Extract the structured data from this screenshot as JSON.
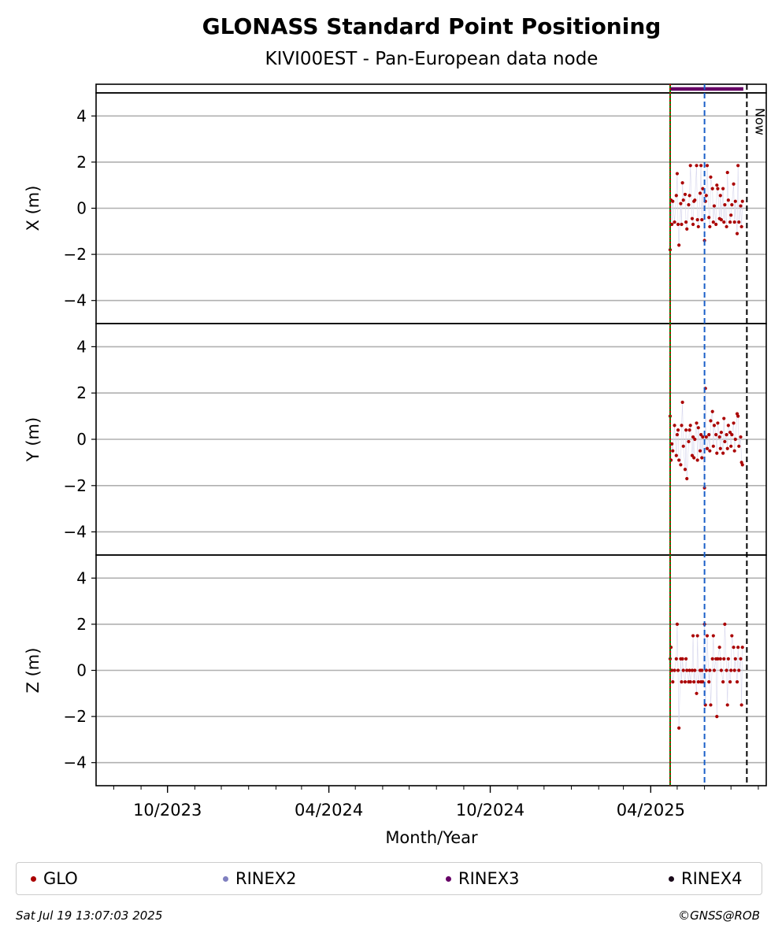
{
  "title": "GLONASS Standard Point Positioning",
  "subtitle": "KIVI00EST - Pan-European data node",
  "chart_data": {
    "type": "scatter",
    "xlabel": "Month/Year",
    "x_tick_labels": [
      "10/2023",
      "04/2024",
      "10/2024",
      "04/2025"
    ],
    "x_tick_dates": [
      "2023-10-01",
      "2024-04-01",
      "2024-10-01",
      "2025-04-01"
    ],
    "xlim": [
      "2023-07-12",
      "2025-08-10"
    ],
    "grid": "horizontal",
    "now_label": "Now",
    "now_date": "2025-07-19",
    "vertical_lines": [
      {
        "date": "2025-04-23",
        "style": "solid",
        "color": "#008000"
      },
      {
        "date": "2025-04-23",
        "style": "dotted",
        "color": "#cc0000"
      },
      {
        "date": "2025-06-01",
        "style": "dashed",
        "color": "#1a5fc8"
      },
      {
        "date": "2025-07-19",
        "style": "dashed",
        "color": "#000000"
      }
    ],
    "rinex_bar": {
      "series": "RINEX3",
      "start": "2025-04-23",
      "end": "2025-07-15",
      "color": "#660066"
    },
    "panels": [
      {
        "ylabel": "X (m)",
        "ylim": [
          -5,
          5
        ],
        "yticks": [
          -4,
          -2,
          0,
          2,
          4
        ],
        "series": [
          {
            "name": "GLO",
            "color": "#aa0000",
            "x": [
              "2025-04-23",
              "2025-04-24",
              "2025-04-25",
              "2025-04-26",
              "2025-04-28",
              "2025-04-30",
              "2025-05-01",
              "2025-05-02",
              "2025-05-03",
              "2025-05-05",
              "2025-05-06",
              "2025-05-07",
              "2025-05-08",
              "2025-05-10",
              "2025-05-11",
              "2025-05-12",
              "2025-05-14",
              "2025-05-15",
              "2025-05-16",
              "2025-05-18",
              "2025-05-19",
              "2025-05-20",
              "2025-05-21",
              "2025-05-23",
              "2025-05-24",
              "2025-05-25",
              "2025-05-27",
              "2025-05-28",
              "2025-05-29",
              "2025-05-30",
              "2025-06-01",
              "2025-06-02",
              "2025-06-03",
              "2025-06-04",
              "2025-06-06",
              "2025-06-07",
              "2025-06-08",
              "2025-06-10",
              "2025-06-11",
              "2025-06-12",
              "2025-06-14",
              "2025-06-15",
              "2025-06-16",
              "2025-06-18",
              "2025-06-19",
              "2025-06-20",
              "2025-06-22",
              "2025-06-23",
              "2025-06-24",
              "2025-06-26",
              "2025-06-27",
              "2025-06-28",
              "2025-06-30",
              "2025-07-01",
              "2025-07-02",
              "2025-07-04",
              "2025-07-05",
              "2025-07-06",
              "2025-07-08",
              "2025-07-09",
              "2025-07-10",
              "2025-07-12",
              "2025-07-13",
              "2025-07-14"
            ],
            "y": [
              -1.8,
              0.35,
              -0.7,
              0.3,
              -0.6,
              0.55,
              1.5,
              -0.7,
              -1.6,
              0.2,
              -0.7,
              1.1,
              0.35,
              0.6,
              -0.6,
              -0.9,
              0.15,
              0.55,
              1.85,
              -0.45,
              -0.7,
              0.3,
              0.35,
              1.85,
              -0.5,
              -0.8,
              0.65,
              1.85,
              -0.5,
              0.85,
              -1.4,
              0.3,
              0.55,
              1.85,
              -0.4,
              -0.8,
              1.35,
              0.85,
              -0.6,
              0.1,
              -0.7,
              1.0,
              0.85,
              -0.45,
              0.55,
              -0.5,
              0.85,
              -0.6,
              0.15,
              -0.8,
              1.55,
              0.35,
              -0.6,
              -0.3,
              0.15,
              1.05,
              -0.6,
              0.3,
              -1.1,
              1.85,
              -0.6,
              0.1,
              -0.8,
              0.3
            ]
          }
        ]
      },
      {
        "ylabel": "Y (m)",
        "ylim": [
          -5,
          5
        ],
        "yticks": [
          -4,
          -2,
          0,
          2,
          4
        ],
        "series": [
          {
            "name": "GLO",
            "color": "#aa0000",
            "x": [
              "2025-04-23",
              "2025-04-24",
              "2025-04-25",
              "2025-04-26",
              "2025-04-28",
              "2025-04-30",
              "2025-05-01",
              "2025-05-02",
              "2025-05-03",
              "2025-05-05",
              "2025-05-06",
              "2025-05-07",
              "2025-05-08",
              "2025-05-10",
              "2025-05-11",
              "2025-05-12",
              "2025-05-14",
              "2025-05-15",
              "2025-05-16",
              "2025-05-18",
              "2025-05-19",
              "2025-05-20",
              "2025-05-21",
              "2025-05-23",
              "2025-05-24",
              "2025-05-25",
              "2025-05-27",
              "2025-05-28",
              "2025-05-29",
              "2025-05-30",
              "2025-06-01",
              "2025-06-02",
              "2025-06-03",
              "2025-06-04",
              "2025-06-06",
              "2025-06-07",
              "2025-06-08",
              "2025-06-10",
              "2025-06-11",
              "2025-06-12",
              "2025-06-14",
              "2025-06-15",
              "2025-06-16",
              "2025-06-18",
              "2025-06-19",
              "2025-06-20",
              "2025-06-22",
              "2025-06-23",
              "2025-06-24",
              "2025-06-26",
              "2025-06-27",
              "2025-06-28",
              "2025-06-30",
              "2025-07-01",
              "2025-07-02",
              "2025-07-04",
              "2025-07-05",
              "2025-07-06",
              "2025-07-08",
              "2025-07-09",
              "2025-07-10",
              "2025-07-12",
              "2025-07-13",
              "2025-07-14"
            ],
            "y": [
              1.0,
              -0.9,
              -0.2,
              -0.5,
              0.6,
              -0.7,
              0.2,
              0.4,
              -0.9,
              -1.1,
              0.6,
              1.6,
              -0.3,
              -1.3,
              0.4,
              -1.7,
              -0.1,
              0.4,
              0.6,
              -0.7,
              0.1,
              -0.8,
              0.0,
              0.7,
              -0.9,
              0.5,
              -0.5,
              0.2,
              -0.8,
              0.1,
              -2.1,
              2.2,
              0.1,
              -0.4,
              0.2,
              -0.5,
              0.8,
              1.2,
              -0.3,
              0.6,
              0.2,
              -0.6,
              0.7,
              0.1,
              -0.4,
              0.3,
              -0.6,
              0.9,
              -0.1,
              0.2,
              -0.4,
              0.6,
              0.3,
              -0.3,
              0.2,
              0.7,
              -0.5,
              0.0,
              1.1,
              1.0,
              -0.3,
              0.1,
              -1.0,
              -1.1
            ]
          }
        ]
      },
      {
        "ylabel": "Z (m)",
        "ylim": [
          -5,
          5
        ],
        "yticks": [
          -4,
          -2,
          0,
          2,
          4
        ],
        "series": [
          {
            "name": "GLO",
            "color": "#aa0000",
            "x": [
              "2025-04-23",
              "2025-04-24",
              "2025-04-25",
              "2025-04-26",
              "2025-04-28",
              "2025-04-30",
              "2025-05-01",
              "2025-05-02",
              "2025-05-03",
              "2025-05-05",
              "2025-05-06",
              "2025-05-07",
              "2025-05-08",
              "2025-05-10",
              "2025-05-11",
              "2025-05-12",
              "2025-05-14",
              "2025-05-15",
              "2025-05-16",
              "2025-05-18",
              "2025-05-19",
              "2025-05-20",
              "2025-05-21",
              "2025-05-23",
              "2025-05-24",
              "2025-05-25",
              "2025-05-27",
              "2025-05-28",
              "2025-05-29",
              "2025-05-30",
              "2025-06-01",
              "2025-06-02",
              "2025-06-03",
              "2025-06-04",
              "2025-06-06",
              "2025-06-07",
              "2025-06-08",
              "2025-06-10",
              "2025-06-11",
              "2025-06-12",
              "2025-06-14",
              "2025-06-15",
              "2025-06-16",
              "2025-06-18",
              "2025-06-19",
              "2025-06-20",
              "2025-06-22",
              "2025-06-23",
              "2025-06-24",
              "2025-06-26",
              "2025-06-27",
              "2025-06-28",
              "2025-06-30",
              "2025-07-01",
              "2025-07-02",
              "2025-07-04",
              "2025-07-05",
              "2025-07-06",
              "2025-07-08",
              "2025-07-09",
              "2025-07-10",
              "2025-07-12",
              "2025-07-13",
              "2025-07-14"
            ],
            "y": [
              0.5,
              1.0,
              0.0,
              -0.5,
              0.0,
              0.5,
              2.0,
              0.0,
              -2.5,
              0.5,
              -0.5,
              0.5,
              0.0,
              -0.5,
              0.5,
              0.0,
              -0.5,
              0.0,
              -0.5,
              0.0,
              1.5,
              -0.5,
              0.0,
              -1.0,
              1.5,
              -0.5,
              0.0,
              -0.5,
              0.0,
              -0.5,
              2.0,
              -1.5,
              0.0,
              1.5,
              -0.5,
              0.0,
              -1.5,
              0.5,
              1.5,
              0.0,
              0.5,
              -2.0,
              0.5,
              1.0,
              0.5,
              0.0,
              -0.5,
              0.5,
              2.0,
              0.0,
              -1.5,
              0.5,
              -0.5,
              0.0,
              1.5,
              1.0,
              0.0,
              0.5,
              -0.5,
              1.0,
              0.0,
              0.5,
              -1.5,
              1.0
            ]
          }
        ]
      }
    ]
  },
  "legend": [
    {
      "label": "GLO",
      "color": "#aa0000"
    },
    {
      "label": "RINEX2",
      "color": "#8080c0"
    },
    {
      "label": "RINEX3",
      "color": "#660066"
    },
    {
      "label": "RINEX4",
      "color": "#1a0a1a"
    }
  ],
  "footer": {
    "timestamp": "Sat Jul 19 13:07:03 2025",
    "credit": "©GNSS@ROB"
  }
}
